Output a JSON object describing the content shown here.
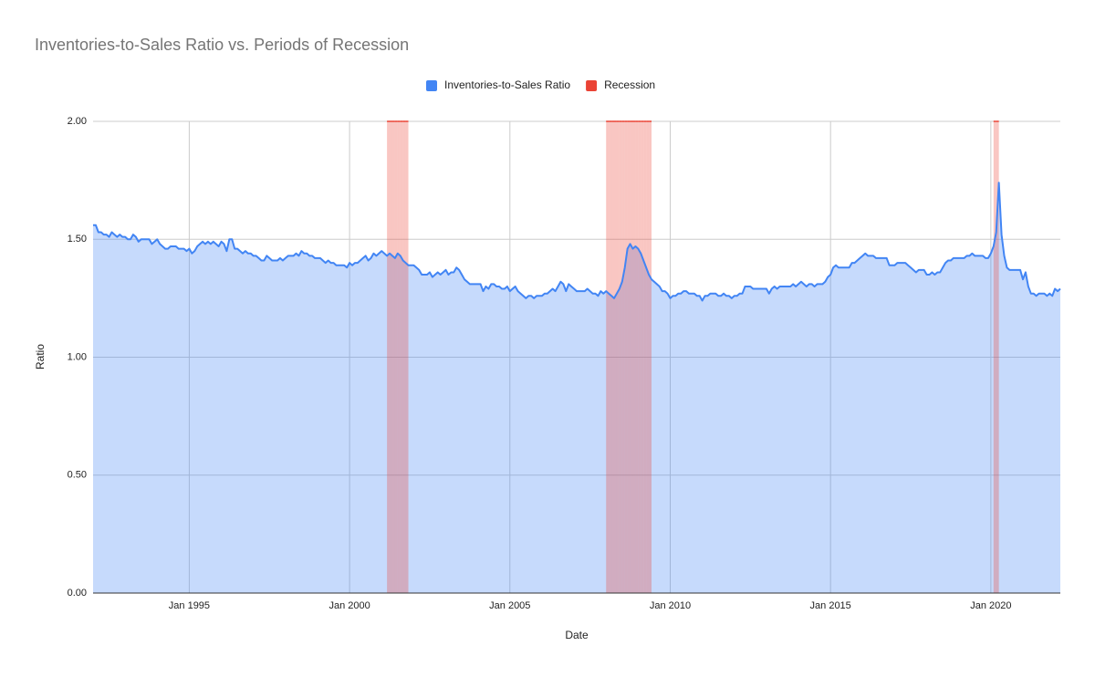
{
  "chart_data": {
    "type": "area",
    "title": "Inventories-to-Sales Ratio vs. Periods of Recession",
    "x_label": "Date",
    "y_label": "Ratio",
    "x": [
      "1992-01",
      "1992-02",
      "1992-03",
      "1992-04",
      "1992-05",
      "1992-06",
      "1992-07",
      "1992-08",
      "1992-09",
      "1992-10",
      "1992-11",
      "1992-12",
      "1993-01",
      "1993-02",
      "1993-03",
      "1993-04",
      "1993-05",
      "1993-06",
      "1993-07",
      "1993-08",
      "1993-09",
      "1993-10",
      "1993-11",
      "1993-12",
      "1994-01",
      "1994-02",
      "1994-03",
      "1994-04",
      "1994-05",
      "1994-06",
      "1994-07",
      "1994-08",
      "1994-09",
      "1994-10",
      "1994-11",
      "1994-12",
      "1995-01",
      "1995-02",
      "1995-03",
      "1995-04",
      "1995-05",
      "1995-06",
      "1995-07",
      "1995-08",
      "1995-09",
      "1995-10",
      "1995-11",
      "1995-12",
      "1996-01",
      "1996-02",
      "1996-03",
      "1996-04",
      "1996-05",
      "1996-06",
      "1996-07",
      "1996-08",
      "1996-09",
      "1996-10",
      "1996-11",
      "1996-12",
      "1997-01",
      "1997-02",
      "1997-03",
      "1997-04",
      "1997-05",
      "1997-06",
      "1997-07",
      "1997-08",
      "1997-09",
      "1997-10",
      "1997-11",
      "1997-12",
      "1998-01",
      "1998-02",
      "1998-03",
      "1998-04",
      "1998-05",
      "1998-06",
      "1998-07",
      "1998-08",
      "1998-09",
      "1998-10",
      "1998-11",
      "1998-12",
      "1999-01",
      "1999-02",
      "1999-03",
      "1999-04",
      "1999-05",
      "1999-06",
      "1999-07",
      "1999-08",
      "1999-09",
      "1999-10",
      "1999-11",
      "1999-12",
      "2000-01",
      "2000-02",
      "2000-03",
      "2000-04",
      "2000-05",
      "2000-06",
      "2000-07",
      "2000-08",
      "2000-09",
      "2000-10",
      "2000-11",
      "2000-12",
      "2001-01",
      "2001-02",
      "2001-03",
      "2001-04",
      "2001-05",
      "2001-06",
      "2001-07",
      "2001-08",
      "2001-09",
      "2001-10",
      "2001-11",
      "2001-12",
      "2002-01",
      "2002-02",
      "2002-03",
      "2002-04",
      "2002-05",
      "2002-06",
      "2002-07",
      "2002-08",
      "2002-09",
      "2002-10",
      "2002-11",
      "2002-12",
      "2003-01",
      "2003-02",
      "2003-03",
      "2003-04",
      "2003-05",
      "2003-06",
      "2003-07",
      "2003-08",
      "2003-09",
      "2003-10",
      "2003-11",
      "2003-12",
      "2004-01",
      "2004-02",
      "2004-03",
      "2004-04",
      "2004-05",
      "2004-06",
      "2004-07",
      "2004-08",
      "2004-09",
      "2004-10",
      "2004-11",
      "2004-12",
      "2005-01",
      "2005-02",
      "2005-03",
      "2005-04",
      "2005-05",
      "2005-06",
      "2005-07",
      "2005-08",
      "2005-09",
      "2005-10",
      "2005-11",
      "2005-12",
      "2006-01",
      "2006-02",
      "2006-03",
      "2006-04",
      "2006-05",
      "2006-06",
      "2006-07",
      "2006-08",
      "2006-09",
      "2006-10",
      "2006-11",
      "2006-12",
      "2007-01",
      "2007-02",
      "2007-03",
      "2007-04",
      "2007-05",
      "2007-06",
      "2007-07",
      "2007-08",
      "2007-09",
      "2007-10",
      "2007-11",
      "2007-12",
      "2008-01",
      "2008-02",
      "2008-03",
      "2008-04",
      "2008-05",
      "2008-06",
      "2008-07",
      "2008-08",
      "2008-09",
      "2008-10",
      "2008-11",
      "2008-12",
      "2009-01",
      "2009-02",
      "2009-03",
      "2009-04",
      "2009-05",
      "2009-06",
      "2009-07",
      "2009-08",
      "2009-09",
      "2009-10",
      "2009-11",
      "2009-12",
      "2010-01",
      "2010-02",
      "2010-03",
      "2010-04",
      "2010-05",
      "2010-06",
      "2010-07",
      "2010-08",
      "2010-09",
      "2010-10",
      "2010-11",
      "2010-12",
      "2011-01",
      "2011-02",
      "2011-03",
      "2011-04",
      "2011-05",
      "2011-06",
      "2011-07",
      "2011-08",
      "2011-09",
      "2011-10",
      "2011-11",
      "2011-12",
      "2012-01",
      "2012-02",
      "2012-03",
      "2012-04",
      "2012-05",
      "2012-06",
      "2012-07",
      "2012-08",
      "2012-09",
      "2012-10",
      "2012-11",
      "2012-12",
      "2013-01",
      "2013-02",
      "2013-03",
      "2013-04",
      "2013-05",
      "2013-06",
      "2013-07",
      "2013-08",
      "2013-09",
      "2013-10",
      "2013-11",
      "2013-12",
      "2014-01",
      "2014-02",
      "2014-03",
      "2014-04",
      "2014-05",
      "2014-06",
      "2014-07",
      "2014-08",
      "2014-09",
      "2014-10",
      "2014-11",
      "2014-12",
      "2015-01",
      "2015-02",
      "2015-03",
      "2015-04",
      "2015-05",
      "2015-06",
      "2015-07",
      "2015-08",
      "2015-09",
      "2015-10",
      "2015-11",
      "2015-12",
      "2016-01",
      "2016-02",
      "2016-03",
      "2016-04",
      "2016-05",
      "2016-06",
      "2016-07",
      "2016-08",
      "2016-09",
      "2016-10",
      "2016-11",
      "2016-12",
      "2017-01",
      "2017-02",
      "2017-03",
      "2017-04",
      "2017-05",
      "2017-06",
      "2017-07",
      "2017-08",
      "2017-09",
      "2017-10",
      "2017-11",
      "2017-12",
      "2018-01",
      "2018-02",
      "2018-03",
      "2018-04",
      "2018-05",
      "2018-06",
      "2018-07",
      "2018-08",
      "2018-09",
      "2018-10",
      "2018-11",
      "2018-12",
      "2019-01",
      "2019-02",
      "2019-03",
      "2019-04",
      "2019-05",
      "2019-06",
      "2019-07",
      "2019-08",
      "2019-09",
      "2019-10",
      "2019-11",
      "2019-12",
      "2020-01",
      "2020-02",
      "2020-03",
      "2020-04",
      "2020-05",
      "2020-06",
      "2020-07",
      "2020-08",
      "2020-09",
      "2020-10",
      "2020-11",
      "2020-12",
      "2021-01",
      "2021-02",
      "2021-03",
      "2021-04",
      "2021-05",
      "2021-06",
      "2021-07",
      "2021-08",
      "2021-09",
      "2021-10",
      "2021-11",
      "2021-12",
      "2022-01",
      "2022-02",
      "2022-03"
    ],
    "series": [
      {
        "name": "Inventories-to-Sales Ratio",
        "color": "#4285f4",
        "values": [
          1.56,
          1.56,
          1.53,
          1.53,
          1.52,
          1.52,
          1.51,
          1.53,
          1.52,
          1.51,
          1.52,
          1.51,
          1.51,
          1.5,
          1.5,
          1.52,
          1.51,
          1.49,
          1.5,
          1.5,
          1.5,
          1.5,
          1.48,
          1.49,
          1.5,
          1.48,
          1.47,
          1.46,
          1.46,
          1.47,
          1.47,
          1.47,
          1.46,
          1.46,
          1.46,
          1.45,
          1.46,
          1.44,
          1.45,
          1.47,
          1.48,
          1.49,
          1.48,
          1.49,
          1.48,
          1.49,
          1.48,
          1.47,
          1.49,
          1.48,
          1.45,
          1.5,
          1.5,
          1.46,
          1.46,
          1.45,
          1.44,
          1.45,
          1.44,
          1.44,
          1.43,
          1.43,
          1.42,
          1.41,
          1.41,
          1.43,
          1.42,
          1.41,
          1.41,
          1.41,
          1.42,
          1.41,
          1.42,
          1.43,
          1.43,
          1.43,
          1.44,
          1.43,
          1.45,
          1.44,
          1.44,
          1.43,
          1.43,
          1.42,
          1.42,
          1.42,
          1.41,
          1.4,
          1.41,
          1.4,
          1.4,
          1.39,
          1.39,
          1.39,
          1.39,
          1.38,
          1.4,
          1.39,
          1.4,
          1.4,
          1.41,
          1.42,
          1.43,
          1.41,
          1.42,
          1.44,
          1.43,
          1.44,
          1.45,
          1.44,
          1.43,
          1.44,
          1.43,
          1.42,
          1.44,
          1.43,
          1.41,
          1.4,
          1.39,
          1.39,
          1.39,
          1.38,
          1.37,
          1.35,
          1.35,
          1.35,
          1.36,
          1.34,
          1.35,
          1.36,
          1.35,
          1.36,
          1.37,
          1.35,
          1.36,
          1.36,
          1.38,
          1.37,
          1.35,
          1.33,
          1.32,
          1.31,
          1.31,
          1.31,
          1.31,
          1.31,
          1.28,
          1.3,
          1.29,
          1.31,
          1.31,
          1.3,
          1.3,
          1.29,
          1.29,
          1.3,
          1.28,
          1.29,
          1.3,
          1.28,
          1.27,
          1.26,
          1.25,
          1.26,
          1.26,
          1.25,
          1.26,
          1.26,
          1.26,
          1.27,
          1.27,
          1.28,
          1.29,
          1.28,
          1.3,
          1.32,
          1.31,
          1.28,
          1.31,
          1.3,
          1.29,
          1.28,
          1.28,
          1.28,
          1.28,
          1.29,
          1.28,
          1.27,
          1.27,
          1.26,
          1.28,
          1.27,
          1.28,
          1.27,
          1.26,
          1.25,
          1.27,
          1.29,
          1.32,
          1.38,
          1.46,
          1.48,
          1.46,
          1.47,
          1.46,
          1.44,
          1.41,
          1.38,
          1.35,
          1.33,
          1.32,
          1.31,
          1.3,
          1.28,
          1.28,
          1.27,
          1.25,
          1.26,
          1.26,
          1.27,
          1.27,
          1.28,
          1.28,
          1.27,
          1.27,
          1.27,
          1.26,
          1.26,
          1.24,
          1.26,
          1.26,
          1.27,
          1.27,
          1.27,
          1.26,
          1.26,
          1.27,
          1.26,
          1.26,
          1.25,
          1.26,
          1.26,
          1.27,
          1.27,
          1.3,
          1.3,
          1.3,
          1.29,
          1.29,
          1.29,
          1.29,
          1.29,
          1.29,
          1.27,
          1.29,
          1.3,
          1.29,
          1.3,
          1.3,
          1.3,
          1.3,
          1.3,
          1.31,
          1.3,
          1.31,
          1.32,
          1.31,
          1.3,
          1.31,
          1.31,
          1.3,
          1.31,
          1.31,
          1.31,
          1.32,
          1.34,
          1.35,
          1.38,
          1.39,
          1.38,
          1.38,
          1.38,
          1.38,
          1.38,
          1.4,
          1.4,
          1.41,
          1.42,
          1.43,
          1.44,
          1.43,
          1.43,
          1.43,
          1.42,
          1.42,
          1.42,
          1.42,
          1.42,
          1.39,
          1.39,
          1.39,
          1.4,
          1.4,
          1.4,
          1.4,
          1.39,
          1.38,
          1.37,
          1.36,
          1.37,
          1.37,
          1.37,
          1.35,
          1.35,
          1.36,
          1.35,
          1.36,
          1.36,
          1.38,
          1.4,
          1.41,
          1.41,
          1.42,
          1.42,
          1.42,
          1.42,
          1.42,
          1.43,
          1.43,
          1.44,
          1.43,
          1.43,
          1.43,
          1.43,
          1.42,
          1.42,
          1.44,
          1.47,
          1.53,
          1.74,
          1.52,
          1.43,
          1.38,
          1.37,
          1.37,
          1.37,
          1.37,
          1.37,
          1.33,
          1.36,
          1.3,
          1.27,
          1.27,
          1.26,
          1.27,
          1.27,
          1.27,
          1.26,
          1.27,
          1.26,
          1.29,
          1.28,
          1.29
        ]
      },
      {
        "name": "Recession",
        "color": "#ea4335",
        "values": [
          0,
          0,
          0,
          0,
          0,
          0,
          0,
          0,
          0,
          0,
          0,
          0,
          0,
          0,
          0,
          0,
          0,
          0,
          0,
          0,
          0,
          0,
          0,
          0,
          0,
          0,
          0,
          0,
          0,
          0,
          0,
          0,
          0,
          0,
          0,
          0,
          0,
          0,
          0,
          0,
          0,
          0,
          0,
          0,
          0,
          0,
          0,
          0,
          0,
          0,
          0,
          0,
          0,
          0,
          0,
          0,
          0,
          0,
          0,
          0,
          0,
          0,
          0,
          0,
          0,
          0,
          0,
          0,
          0,
          0,
          0,
          0,
          0,
          0,
          0,
          0,
          0,
          0,
          0,
          0,
          0,
          0,
          0,
          0,
          0,
          0,
          0,
          0,
          0,
          0,
          0,
          0,
          0,
          0,
          0,
          0,
          0,
          0,
          0,
          0,
          0,
          0,
          0,
          0,
          0,
          0,
          0,
          0,
          0,
          0,
          2,
          2,
          2,
          2,
          2,
          2,
          2,
          2,
          0,
          0,
          0,
          0,
          0,
          0,
          0,
          0,
          0,
          0,
          0,
          0,
          0,
          0,
          0,
          0,
          0,
          0,
          0,
          0,
          0,
          0,
          0,
          0,
          0,
          0,
          0,
          0,
          0,
          0,
          0,
          0,
          0,
          0,
          0,
          0,
          0,
          0,
          0,
          0,
          0,
          0,
          0,
          0,
          0,
          0,
          0,
          0,
          0,
          0,
          0,
          0,
          0,
          0,
          0,
          0,
          0,
          0,
          0,
          0,
          0,
          0,
          0,
          0,
          0,
          0,
          0,
          0,
          0,
          0,
          0,
          0,
          0,
          0,
          2,
          2,
          2,
          2,
          2,
          2,
          2,
          2,
          2,
          2,
          2,
          2,
          2,
          2,
          2,
          2,
          2,
          0,
          0,
          0,
          0,
          0,
          0,
          0,
          0,
          0,
          0,
          0,
          0,
          0,
          0,
          0,
          0,
          0,
          0,
          0,
          0,
          0,
          0,
          0,
          0,
          0,
          0,
          0,
          0,
          0,
          0,
          0,
          0,
          0,
          0,
          0,
          0,
          0,
          0,
          0,
          0,
          0,
          0,
          0,
          0,
          0,
          0,
          0,
          0,
          0,
          0,
          0,
          0,
          0,
          0,
          0,
          0,
          0,
          0,
          0,
          0,
          0,
          0,
          0,
          0,
          0,
          0,
          0,
          0,
          0,
          0,
          0,
          0,
          0,
          0,
          0,
          0,
          0,
          0,
          0,
          0,
          0,
          0,
          0,
          0,
          0,
          0,
          0,
          0,
          0,
          0,
          0,
          0,
          0,
          0,
          0,
          0,
          0,
          0,
          0,
          0,
          0,
          0,
          0,
          0,
          0,
          0,
          0,
          0,
          0,
          0,
          0,
          0,
          0,
          0,
          0,
          0,
          0,
          0,
          0,
          0,
          0,
          0,
          0,
          0,
          0,
          0,
          0,
          0,
          2,
          2,
          0,
          0,
          0,
          0,
          0,
          0,
          0,
          0,
          0,
          0,
          0,
          0,
          0,
          0,
          0,
          0,
          0,
          0,
          0,
          0,
          0,
          0,
          0,
          0
        ]
      }
    ],
    "xlim": [
      "1992-01",
      "2022-03"
    ],
    "xticks": [
      {
        "value": "1995-01",
        "label": "Jan 1995"
      },
      {
        "value": "2000-01",
        "label": "Jan 2000"
      },
      {
        "value": "2005-01",
        "label": "Jan 2005"
      },
      {
        "value": "2010-01",
        "label": "Jan 2010"
      },
      {
        "value": "2015-01",
        "label": "Jan 2015"
      },
      {
        "value": "2020-01",
        "label": "Jan 2020"
      }
    ],
    "ylim": [
      0,
      2
    ],
    "yticks": [
      {
        "value": 0,
        "label": "0.00"
      },
      {
        "value": 0.5,
        "label": "0.50"
      },
      {
        "value": 1,
        "label": "1.00"
      },
      {
        "value": 1.5,
        "label": "1.50"
      },
      {
        "value": 2,
        "label": "2.00"
      }
    ],
    "grid": true,
    "legend": "top"
  }
}
